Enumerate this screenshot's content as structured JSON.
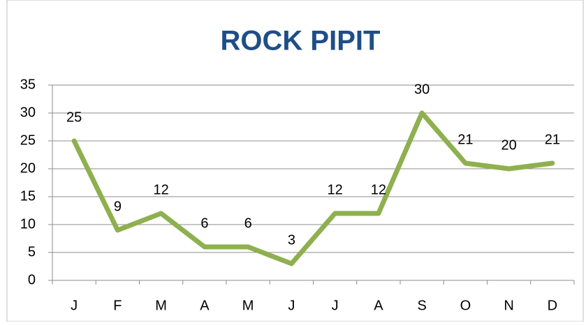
{
  "chart_data": {
    "type": "line",
    "title": "ROCK PIPIT",
    "categories": [
      "J",
      "F",
      "M",
      "A",
      "M",
      "J",
      "J",
      "A",
      "S",
      "O",
      "N",
      "D"
    ],
    "values": [
      25,
      9,
      12,
      6,
      6,
      3,
      12,
      12,
      30,
      21,
      20,
      21
    ],
    "color": "#8eb04f",
    "ylim": [
      0,
      35
    ],
    "yticks": [
      0,
      5,
      10,
      15,
      20,
      25,
      30,
      35
    ],
    "grid": true
  }
}
